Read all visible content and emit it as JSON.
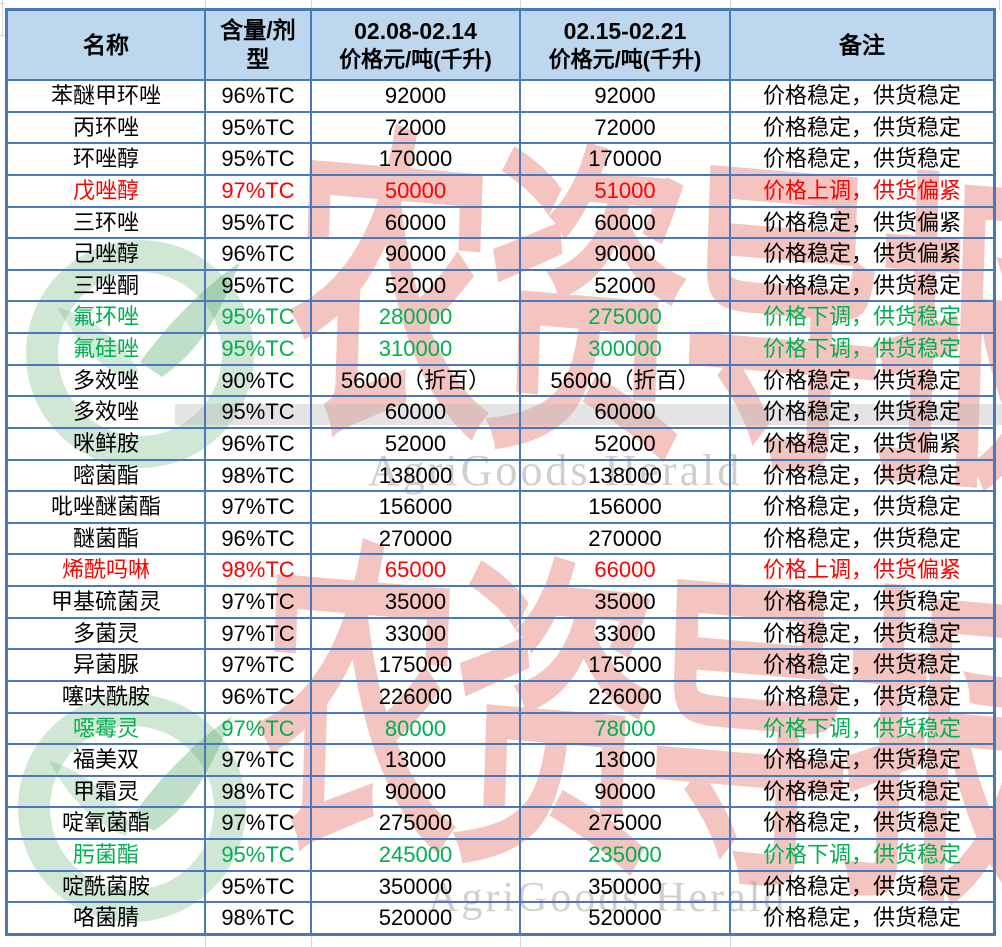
{
  "colors": {
    "header_bg": "#BDD7EE",
    "grid_border": "#4A79BB",
    "price_up": "#FF0000",
    "price_down": "#00B050",
    "text": "#000000",
    "watermark_red": "#E0524A",
    "watermark_green": "#55AA6E",
    "watermark_gray": "#808080"
  },
  "watermark": {
    "logo_text_cn": "农资导报",
    "logo_text_en": "AgriGoods  Herald"
  },
  "table": {
    "columns": [
      {
        "title": "名称",
        "subtitle": ""
      },
      {
        "title": "含量/剂\n型",
        "subtitle": ""
      },
      {
        "title": "02.08-02.14",
        "subtitle": "价格元/吨(千升)"
      },
      {
        "title": "02.15-02.21",
        "subtitle": "价格元/吨(千升)"
      },
      {
        "title": "备注",
        "subtitle": ""
      }
    ],
    "header": {
      "col1_line1": "名称",
      "col2_line1": "含量/剂",
      "col2_line2": "型",
      "col3_line1": "02.08-02.14",
      "col3_line2": "价格元/吨(千升)",
      "col4_line1": "02.15-02.21",
      "col4_line2": "价格元/吨(千升)",
      "col5_line1": "备注"
    },
    "rows": [
      {
        "name": "苯醚甲环唑",
        "spec": "96%TC",
        "price1": "92000",
        "price2": "92000",
        "remark": "价格稳定，供货稳定",
        "trend": "stable"
      },
      {
        "name": "丙环唑",
        "spec": "95%TC",
        "price1": "72000",
        "price2": "72000",
        "remark": "价格稳定，供货稳定",
        "trend": "stable"
      },
      {
        "name": "环唑醇",
        "spec": "95%TC",
        "price1": "170000",
        "price2": "170000",
        "remark": "价格稳定，供货稳定",
        "trend": "stable"
      },
      {
        "name": "戊唑醇",
        "spec": "97%TC",
        "price1": "50000",
        "price2": "51000",
        "remark": "价格上调，供货偏紧",
        "trend": "up"
      },
      {
        "name": "三环唑",
        "spec": "95%TC",
        "price1": "60000",
        "price2": "60000",
        "remark": "价格稳定，供货偏紧",
        "trend": "stable"
      },
      {
        "name": "己唑醇",
        "spec": "96%TC",
        "price1": "90000",
        "price2": "90000",
        "remark": "价格稳定，供货偏紧",
        "trend": "stable"
      },
      {
        "name": "三唑酮",
        "spec": "95%TC",
        "price1": "52000",
        "price2": "52000",
        "remark": "价格稳定，供货稳定",
        "trend": "stable"
      },
      {
        "name": "氟环唑",
        "spec": "95%TC",
        "price1": "280000",
        "price2": "275000",
        "remark": "价格下调，供货稳定",
        "trend": "down"
      },
      {
        "name": "氟硅唑",
        "spec": "95%TC",
        "price1": "310000",
        "price2": "300000",
        "remark": "价格下调，供货稳定",
        "trend": "down"
      },
      {
        "name": "多效唑",
        "spec": "90%TC",
        "price1": "56000（折百）",
        "price2": "56000（折百）",
        "remark": "价格稳定，供货稳定",
        "trend": "stable"
      },
      {
        "name": "多效唑",
        "spec": "95%TC",
        "price1": "60000",
        "price2": "60000",
        "remark": "价格稳定，供货稳定",
        "trend": "stable"
      },
      {
        "name": "咪鲜胺",
        "spec": "96%TC",
        "price1": "52000",
        "price2": "52000",
        "remark": "价格稳定，供货偏紧",
        "trend": "stable"
      },
      {
        "name": "嘧菌酯",
        "spec": "98%TC",
        "price1": "138000",
        "price2": "138000",
        "remark": "价格稳定，供货稳定",
        "trend": "stable"
      },
      {
        "name": "吡唑醚菌酯",
        "spec": "97%TC",
        "price1": "156000",
        "price2": "156000",
        "remark": "价格稳定，供货稳定",
        "trend": "stable"
      },
      {
        "name": "醚菌酯",
        "spec": "96%TC",
        "price1": "270000",
        "price2": "270000",
        "remark": "价格稳定，供货稳定",
        "trend": "stable"
      },
      {
        "name": "烯酰吗啉",
        "spec": "98%TC",
        "price1": "65000",
        "price2": "66000",
        "remark": "价格上调，供货偏紧",
        "trend": "up"
      },
      {
        "name": "甲基硫菌灵",
        "spec": "97%TC",
        "price1": "35000",
        "price2": "35000",
        "remark": "价格稳定，供货稳定",
        "trend": "stable"
      },
      {
        "name": "多菌灵",
        "spec": "97%TC",
        "price1": "33000",
        "price2": "33000",
        "remark": "价格稳定，供货稳定",
        "trend": "stable"
      },
      {
        "name": "异菌脲",
        "spec": "97%TC",
        "price1": "175000",
        "price2": "175000",
        "remark": "价格稳定，供货稳定",
        "trend": "stable"
      },
      {
        "name": "噻呋酰胺",
        "spec": "96%TC",
        "price1": "226000",
        "price2": "226000",
        "remark": "价格稳定，供货稳定",
        "trend": "stable"
      },
      {
        "name": "噁霉灵",
        "spec": "97%TC",
        "price1": "80000",
        "price2": "78000",
        "remark": "价格下调，供货稳定",
        "trend": "down"
      },
      {
        "name": "福美双",
        "spec": "97%TC",
        "price1": "13000",
        "price2": "13000",
        "remark": "价格稳定，供货稳定",
        "trend": "stable"
      },
      {
        "name": "甲霜灵",
        "spec": "98%TC",
        "price1": "90000",
        "price2": "90000",
        "remark": "价格稳定，供货稳定",
        "trend": "stable"
      },
      {
        "name": "啶氧菌酯",
        "spec": "97%TC",
        "price1": "275000",
        "price2": "275000",
        "remark": "价格稳定，供货稳定",
        "trend": "stable"
      },
      {
        "name": "肟菌酯",
        "spec": "95%TC",
        "price1": "245000",
        "price2": "235000",
        "remark": "价格下调，供货稳定",
        "trend": "down"
      },
      {
        "name": "啶酰菌胺",
        "spec": "95%TC",
        "price1": "350000",
        "price2": "350000",
        "remark": "价格稳定，供货稳定",
        "trend": "stable"
      },
      {
        "name": "咯菌腈",
        "spec": "98%TC",
        "price1": "520000",
        "price2": "520000",
        "remark": "价格稳定，供货稳定",
        "trend": "stable"
      }
    ]
  }
}
